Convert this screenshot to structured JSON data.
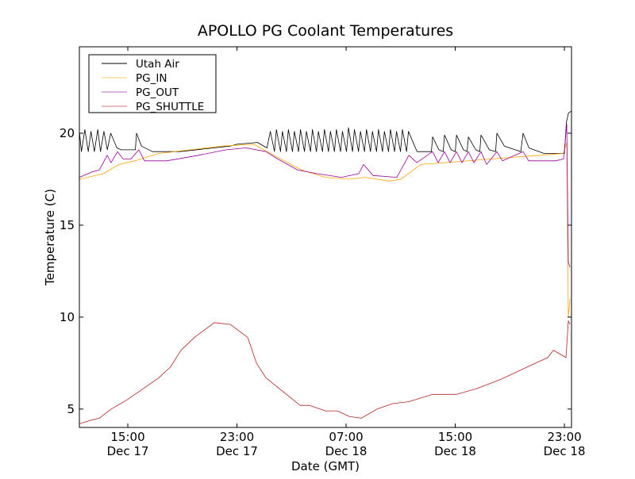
{
  "chart_data": {
    "type": "line",
    "title": "APOLLO PG Coolant Temperatures",
    "xlabel": "Date (GMT)",
    "ylabel": "Temperature (C)",
    "x_units": "hours since Dec 17 00:00 GMT",
    "xlim": [
      11.45,
      47.52
    ],
    "ylim": [
      4,
      24.7
    ],
    "grid": false,
    "legend_position": "top-left",
    "xticks": [
      {
        "value": 15,
        "time": "15:00",
        "date": "Dec 17"
      },
      {
        "value": 23,
        "time": "23:00",
        "date": "Dec 17"
      },
      {
        "value": 31,
        "time": "07:00",
        "date": "Dec 18"
      },
      {
        "value": 39,
        "time": "15:00",
        "date": "Dec 18"
      },
      {
        "value": 47,
        "time": "23:00",
        "date": "Dec 18"
      }
    ],
    "yticks": [
      5,
      10,
      15,
      20
    ],
    "series": [
      {
        "name": "Utah Air",
        "color": "#000000",
        "points": [
          [
            11.45,
            20.1
          ],
          [
            11.6,
            19.0
          ],
          [
            11.85,
            20.2
          ],
          [
            12.1,
            19.0
          ],
          [
            12.3,
            20.1
          ],
          [
            12.55,
            19.0
          ],
          [
            12.8,
            20.2
          ],
          [
            13.0,
            19.0
          ],
          [
            13.25,
            20.1
          ],
          [
            13.5,
            19.1
          ],
          [
            13.75,
            20.0
          ],
          [
            14.2,
            19.2
          ],
          [
            14.5,
            19.1
          ],
          [
            15.55,
            19.1
          ],
          [
            15.64,
            20.0
          ],
          [
            16.0,
            19.3
          ],
          [
            16.8,
            19.0
          ],
          [
            18.8,
            19.0
          ],
          [
            22.5,
            19.3
          ],
          [
            23.0,
            19.4
          ],
          [
            24.5,
            19.5
          ],
          [
            25.2,
            19.2
          ],
          [
            25.45,
            20.1
          ],
          [
            25.75,
            19.0
          ],
          [
            25.89,
            20.2
          ],
          [
            26.19,
            19.0
          ],
          [
            26.33,
            20.1
          ],
          [
            26.63,
            19.0
          ],
          [
            26.77,
            20.2
          ],
          [
            27.07,
            19.0
          ],
          [
            27.21,
            20.1
          ],
          [
            27.51,
            19.0
          ],
          [
            27.65,
            20.2
          ],
          [
            27.95,
            19.0
          ],
          [
            28.09,
            20.1
          ],
          [
            28.39,
            19.0
          ],
          [
            28.53,
            20.2
          ],
          [
            28.83,
            19.0
          ],
          [
            28.97,
            20.1
          ],
          [
            29.27,
            19.0
          ],
          [
            29.41,
            20.2
          ],
          [
            29.71,
            19.0
          ],
          [
            29.85,
            20.1
          ],
          [
            30.15,
            19.0
          ],
          [
            30.29,
            20.2
          ],
          [
            30.59,
            19.0
          ],
          [
            30.73,
            20.1
          ],
          [
            31.03,
            19.0
          ],
          [
            31.17,
            20.3
          ],
          [
            31.47,
            19.0
          ],
          [
            31.61,
            20.2
          ],
          [
            31.91,
            19.0
          ],
          [
            32.05,
            20.1
          ],
          [
            32.35,
            19.0
          ],
          [
            32.49,
            20.2
          ],
          [
            32.79,
            19.0
          ],
          [
            32.93,
            20.1
          ],
          [
            33.23,
            19.0
          ],
          [
            33.37,
            20.2
          ],
          [
            33.67,
            19.0
          ],
          [
            33.81,
            20.1
          ],
          [
            34.11,
            19.0
          ],
          [
            34.25,
            20.2
          ],
          [
            34.55,
            19.0
          ],
          [
            34.69,
            20.1
          ],
          [
            34.99,
            19.0
          ],
          [
            35.13,
            20.2
          ],
          [
            35.43,
            19.0
          ],
          [
            35.57,
            20.1
          ],
          [
            36.2,
            19.0
          ],
          [
            37.25,
            19.0
          ],
          [
            37.34,
            19.8
          ],
          [
            37.8,
            19.1
          ],
          [
            38.12,
            19.0
          ],
          [
            38.21,
            19.9
          ],
          [
            38.7,
            19.1
          ],
          [
            39.0,
            19.0
          ],
          [
            39.09,
            19.9
          ],
          [
            39.6,
            19.1
          ],
          [
            39.87,
            19.0
          ],
          [
            39.96,
            19.8
          ],
          [
            40.5,
            19.1
          ],
          [
            40.8,
            19.0
          ],
          [
            40.89,
            19.9
          ],
          [
            41.5,
            19.1
          ],
          [
            41.96,
            19.0
          ],
          [
            42.05,
            20.0
          ],
          [
            42.6,
            19.3
          ],
          [
            43.8,
            19.0
          ],
          [
            43.97,
            20.0
          ],
          [
            44.4,
            19.2
          ],
          [
            45.5,
            18.9
          ],
          [
            47.0,
            18.9
          ],
          [
            47.15,
            20.6
          ],
          [
            47.3,
            21.1
          ],
          [
            47.5,
            21.2
          ]
        ]
      },
      {
        "name": "PG_IN",
        "color": "#ffa500",
        "points": [
          [
            11.45,
            17.5
          ],
          [
            13.2,
            17.8
          ],
          [
            14.36,
            18.3
          ],
          [
            15.52,
            18.5
          ],
          [
            17.27,
            18.9
          ],
          [
            21.92,
            19.3
          ],
          [
            24.25,
            19.4
          ],
          [
            25.7,
            18.8
          ],
          [
            27.74,
            18.0
          ],
          [
            29.49,
            17.6
          ],
          [
            31.23,
            17.5
          ],
          [
            32.4,
            17.6
          ],
          [
            34.14,
            17.4
          ],
          [
            35.01,
            17.5
          ],
          [
            36.47,
            18.3
          ],
          [
            38.21,
            18.4
          ],
          [
            41.7,
            18.6
          ],
          [
            45.2,
            18.8
          ],
          [
            46.94,
            18.9
          ],
          [
            47.17,
            19.5
          ],
          [
            47.29,
            10.0
          ],
          [
            47.41,
            11.0
          ]
        ]
      },
      {
        "name": "PG_OUT",
        "color": "#990099",
        "points": [
          [
            11.45,
            17.6
          ],
          [
            12.38,
            17.9
          ],
          [
            12.91,
            18.0
          ],
          [
            13.49,
            18.8
          ],
          [
            13.78,
            18.4
          ],
          [
            14.24,
            19.0
          ],
          [
            14.65,
            18.6
          ],
          [
            15.23,
            18.6
          ],
          [
            15.81,
            19.1
          ],
          [
            16.22,
            18.5
          ],
          [
            17.85,
            18.5
          ],
          [
            20.18,
            18.8
          ],
          [
            22.21,
            19.1
          ],
          [
            23.67,
            19.2
          ],
          [
            25.12,
            19.0
          ],
          [
            25.99,
            18.6
          ],
          [
            27.45,
            18.0
          ],
          [
            28.9,
            17.8
          ],
          [
            30.65,
            17.6
          ],
          [
            31.93,
            17.8
          ],
          [
            32.28,
            18.3
          ],
          [
            32.98,
            17.7
          ],
          [
            34.72,
            17.6
          ],
          [
            35.6,
            18.8
          ],
          [
            36.18,
            18.4
          ],
          [
            37.34,
            19.0
          ],
          [
            37.75,
            18.4
          ],
          [
            38.21,
            19.0
          ],
          [
            38.62,
            18.4
          ],
          [
            39.09,
            19.0
          ],
          [
            39.5,
            18.4
          ],
          [
            39.96,
            19.0
          ],
          [
            40.37,
            18.4
          ],
          [
            40.89,
            19.0
          ],
          [
            41.3,
            18.3
          ],
          [
            42.05,
            19.0
          ],
          [
            42.46,
            18.5
          ],
          [
            43.97,
            19.0
          ],
          [
            44.38,
            18.5
          ],
          [
            46.36,
            18.5
          ],
          [
            46.94,
            18.6
          ],
          [
            47.17,
            20.5
          ],
          [
            47.29,
            13.0
          ],
          [
            47.41,
            12.7
          ]
        ]
      },
      {
        "name": "PG_SHUTTLE",
        "color": "#b22222",
        "points": [
          [
            11.45,
            4.2
          ],
          [
            12.32,
            4.4
          ],
          [
            12.91,
            4.5
          ],
          [
            13.78,
            5.0
          ],
          [
            14.94,
            5.5
          ],
          [
            16.11,
            6.1
          ],
          [
            17.27,
            6.7
          ],
          [
            18.14,
            7.3
          ],
          [
            18.9,
            8.2
          ],
          [
            19.89,
            8.9
          ],
          [
            21.34,
            9.7
          ],
          [
            22.51,
            9.6
          ],
          [
            23.79,
            8.9
          ],
          [
            24.43,
            7.5
          ],
          [
            25.12,
            6.7
          ],
          [
            26.29,
            6.0
          ],
          [
            27.63,
            5.2
          ],
          [
            28.32,
            5.2
          ],
          [
            29.49,
            4.9
          ],
          [
            30.36,
            4.9
          ],
          [
            31.23,
            4.6
          ],
          [
            32.11,
            4.5
          ],
          [
            33.27,
            5.0
          ],
          [
            34.43,
            5.3
          ],
          [
            35.6,
            5.4
          ],
          [
            37.34,
            5.8
          ],
          [
            39.09,
            5.8
          ],
          [
            40.54,
            6.1
          ],
          [
            42.29,
            6.6
          ],
          [
            44.03,
            7.2
          ],
          [
            45.78,
            7.8
          ],
          [
            46.19,
            8.2
          ],
          [
            47.12,
            7.8
          ],
          [
            47.29,
            9.8
          ],
          [
            47.41,
            9.6
          ]
        ]
      }
    ]
  }
}
